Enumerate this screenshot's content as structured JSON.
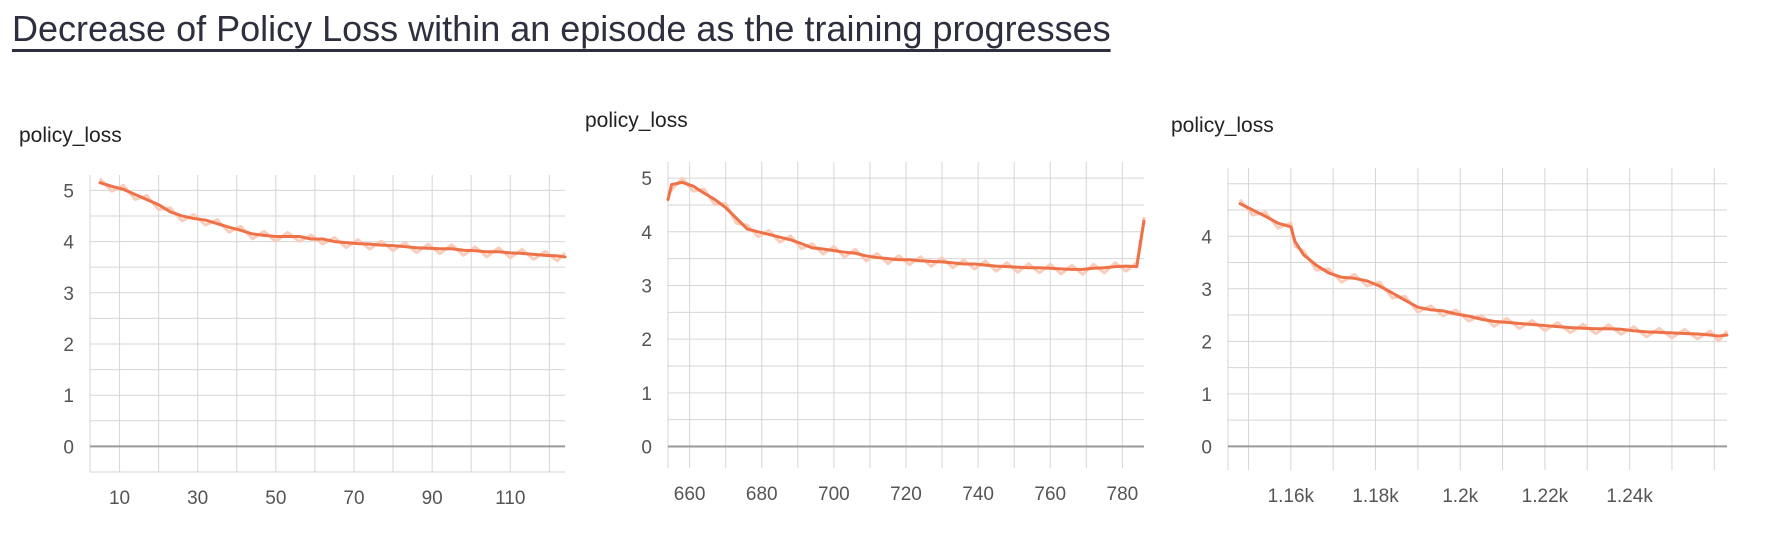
{
  "page": {
    "title": "Decrease of Policy Loss within an episode as the training progresses"
  },
  "colors": {
    "line": "#ee7148",
    "line_light": "#f9cdbb",
    "grid": "#d6d6d6",
    "baseline": "#9a9a9a"
  },
  "chart_data": [
    {
      "type": "line",
      "title": "policy_loss",
      "xlabel": "",
      "ylabel": "",
      "xlim": [
        5,
        124
      ],
      "ylim": [
        -0.5,
        5.3
      ],
      "xticks": [
        10,
        30,
        50,
        70,
        90,
        110
      ],
      "xtick_labels": [
        "10",
        "30",
        "50",
        "70",
        "90",
        "110"
      ],
      "yticks": [
        0,
        1,
        2,
        3,
        4,
        5
      ],
      "ytick_labels": [
        "0",
        "1",
        "2",
        "3",
        "4",
        "5"
      ],
      "grid": true,
      "series": [
        {
          "x": [
            5,
            8,
            11,
            14,
            17,
            20,
            23,
            26,
            29,
            32,
            35,
            38,
            41,
            44,
            47,
            50,
            53,
            56,
            59,
            62,
            65,
            68,
            71,
            74,
            77,
            80,
            83,
            86,
            89,
            92,
            95,
            98,
            101,
            104,
            107,
            110,
            113,
            116,
            119,
            122,
            124
          ],
          "y": [
            5.15,
            5.08,
            5.02,
            4.92,
            4.82,
            4.72,
            4.58,
            4.5,
            4.45,
            4.42,
            4.35,
            4.28,
            4.22,
            4.15,
            4.12,
            4.1,
            4.1,
            4.1,
            4.05,
            4.05,
            4.0,
            3.98,
            3.96,
            3.95,
            3.93,
            3.92,
            3.9,
            3.88,
            3.87,
            3.86,
            3.86,
            3.83,
            3.82,
            3.8,
            3.8,
            3.78,
            3.77,
            3.75,
            3.73,
            3.72,
            3.7
          ]
        }
      ]
    },
    {
      "type": "line",
      "title": "policy_loss",
      "xlabel": "",
      "ylabel": "",
      "xlim": [
        654,
        786
      ],
      "ylim": [
        -0.4,
        5.3
      ],
      "xticks": [
        660,
        680,
        700,
        720,
        740,
        760,
        780
      ],
      "xtick_labels": [
        "660",
        "680",
        "700",
        "720",
        "740",
        "760",
        "780"
      ],
      "yticks": [
        0,
        1,
        2,
        3,
        4,
        5
      ],
      "ytick_labels": [
        "0",
        "1",
        "2",
        "3",
        "4",
        "5"
      ],
      "grid": true,
      "series": [
        {
          "x": [
            654,
            655,
            658,
            661,
            664,
            667,
            670,
            673,
            676,
            679,
            682,
            685,
            688,
            691,
            694,
            697,
            700,
            703,
            706,
            709,
            712,
            715,
            718,
            721,
            724,
            727,
            730,
            733,
            736,
            739,
            742,
            745,
            748,
            751,
            754,
            757,
            760,
            763,
            766,
            769,
            772,
            775,
            778,
            781,
            784,
            785,
            786
          ],
          "y": [
            4.6,
            4.88,
            4.92,
            4.85,
            4.72,
            4.6,
            4.45,
            4.25,
            4.05,
            4.0,
            3.95,
            3.9,
            3.85,
            3.78,
            3.7,
            3.68,
            3.65,
            3.62,
            3.6,
            3.55,
            3.52,
            3.5,
            3.48,
            3.48,
            3.46,
            3.45,
            3.44,
            3.42,
            3.4,
            3.4,
            3.38,
            3.36,
            3.35,
            3.34,
            3.33,
            3.33,
            3.32,
            3.31,
            3.3,
            3.3,
            3.32,
            3.33,
            3.35,
            3.36,
            3.35,
            3.8,
            4.2
          ]
        }
      ]
    },
    {
      "type": "line",
      "title": "policy_loss",
      "xlabel": "",
      "ylabel": "",
      "xlim": [
        1148,
        1263
      ],
      "ylim": [
        -0.45,
        5.3
      ],
      "xticks": [
        1160,
        1180,
        1200,
        1220,
        1240
      ],
      "xtick_labels": [
        "1.16k",
        "1.18k",
        "1.2k",
        "1.22k",
        "1.24k"
      ],
      "yticks": [
        0,
        1,
        2,
        3,
        4
      ],
      "ytick_labels": [
        "0",
        "1",
        "2",
        "3",
        "4"
      ],
      "grid": true,
      "series": [
        {
          "x": [
            1148,
            1151,
            1154,
            1157,
            1160,
            1161,
            1163,
            1166,
            1169,
            1172,
            1175,
            1178,
            1181,
            1184,
            1187,
            1190,
            1193,
            1196,
            1199,
            1202,
            1205,
            1208,
            1211,
            1214,
            1217,
            1220,
            1223,
            1226,
            1229,
            1232,
            1235,
            1238,
            1241,
            1244,
            1247,
            1250,
            1253,
            1256,
            1259,
            1261,
            1263
          ],
          "y": [
            4.62,
            4.5,
            4.38,
            4.25,
            4.18,
            3.9,
            3.65,
            3.45,
            3.3,
            3.22,
            3.2,
            3.15,
            3.05,
            2.92,
            2.78,
            2.65,
            2.6,
            2.58,
            2.52,
            2.48,
            2.42,
            2.38,
            2.36,
            2.34,
            2.32,
            2.3,
            2.28,
            2.26,
            2.25,
            2.24,
            2.24,
            2.23,
            2.2,
            2.18,
            2.17,
            2.16,
            2.15,
            2.14,
            2.12,
            2.1,
            2.12
          ]
        }
      ]
    }
  ]
}
